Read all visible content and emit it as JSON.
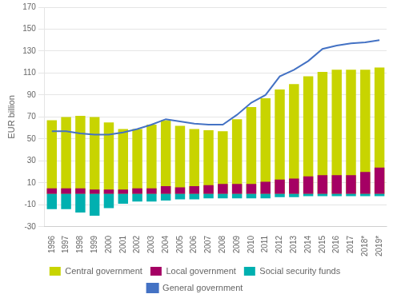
{
  "chart_data": {
    "type": "bar",
    "ylabel": "EUR billion",
    "categories": [
      "1996",
      "1997",
      "1998",
      "1999",
      "2000",
      "2001",
      "2002",
      "2003",
      "2004",
      "2005",
      "2006",
      "2007",
      "2008",
      "2009",
      "2010",
      "2011",
      "2012",
      "2013",
      "2014",
      "2015",
      "2016",
      "2017",
      "2018*",
      "2019*"
    ],
    "series": [
      {
        "name": "Central government",
        "type": "bar",
        "color": "#c8d400",
        "values": [
          67,
          70,
          71,
          70,
          65,
          59,
          59,
          63,
          67,
          62,
          59,
          58,
          57,
          68,
          79,
          87,
          95,
          100,
          107,
          111,
          113,
          113,
          113,
          115
        ]
      },
      {
        "name": "Local government",
        "type": "bar",
        "color": "#a50064",
        "values": [
          5,
          5,
          5,
          4,
          4,
          4,
          5,
          5,
          7,
          6,
          7,
          8,
          9,
          9,
          9,
          11,
          13,
          14,
          16,
          17,
          17,
          17,
          20,
          24
        ]
      },
      {
        "name": "Social security funds",
        "type": "bar",
        "color": "#00b0b0",
        "values": [
          -14,
          -14,
          -17,
          -20,
          -13,
          -9,
          -7,
          -7,
          -6,
          -5,
          -5,
          -4,
          -4,
          -4,
          -4,
          -4,
          -3,
          -3,
          -2,
          -2,
          -2,
          -2,
          -2,
          -2
        ]
      },
      {
        "name": "General government",
        "type": "line",
        "color": "#4472c4",
        "values": [
          57,
          57,
          55,
          54,
          54,
          56,
          59,
          63,
          68,
          66,
          64,
          63,
          63,
          72,
          83,
          90,
          107,
          113,
          121,
          132,
          135,
          137,
          138,
          140
        ]
      }
    ],
    "ylim": [
      -30,
      170
    ],
    "yticks": [
      -30,
      -10,
      10,
      30,
      50,
      70,
      90,
      110,
      130,
      150,
      170
    ],
    "grid": true,
    "legend": "bottom"
  }
}
